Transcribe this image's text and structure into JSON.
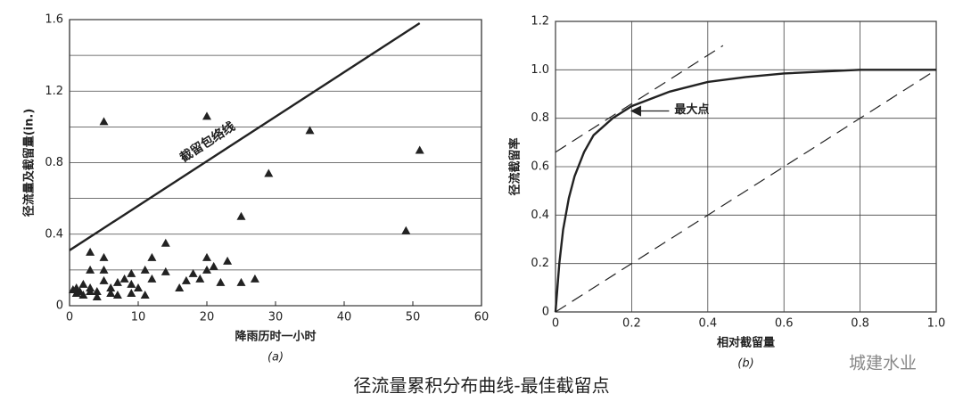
{
  "chart_data": [
    {
      "type": "scatter",
      "subtitle": "(a)",
      "xlabel": "降雨历时一小时",
      "ylabel": "径流量及截留量(in.)",
      "xlim": [
        0,
        60
      ],
      "xticks": [
        0,
        10,
        20,
        30,
        40,
        50,
        60
      ],
      "ylim": [
        0,
        1.6
      ],
      "yticks": [
        0,
        0.4,
        0.8,
        1.2,
        1.6
      ],
      "minor_yticks": [
        0.2,
        0.6,
        1.0,
        1.4
      ],
      "grid": "y",
      "color": "#222",
      "points": {
        "x": [
          5,
          20,
          35,
          51,
          29,
          25,
          49,
          14,
          3,
          5,
          12,
          20,
          23,
          21,
          3,
          5,
          9,
          11,
          14,
          18,
          20,
          1,
          2,
          3,
          4,
          5,
          6,
          7,
          8,
          9,
          10,
          12,
          16,
          19,
          22,
          25,
          27,
          1,
          2,
          3,
          4,
          6,
          7,
          9,
          11,
          0.5,
          1.5,
          17
        ],
        "y": [
          1.03,
          1.06,
          0.98,
          0.87,
          0.74,
          0.5,
          0.42,
          0.35,
          0.3,
          0.27,
          0.27,
          0.27,
          0.25,
          0.22,
          0.2,
          0.2,
          0.18,
          0.2,
          0.19,
          0.18,
          0.2,
          0.1,
          0.12,
          0.1,
          0.08,
          0.14,
          0.1,
          0.13,
          0.15,
          0.12,
          0.1,
          0.15,
          0.1,
          0.15,
          0.13,
          0.13,
          0.15,
          0.07,
          0.06,
          0.08,
          0.05,
          0.07,
          0.06,
          0.07,
          0.06,
          0.09,
          0.08,
          0.14
        ]
      },
      "lines": [
        {
          "label": "截留包络线",
          "x": [
            0,
            51
          ],
          "y": [
            0.31,
            1.58
          ],
          "dash": false
        }
      ]
    },
    {
      "type": "line",
      "subtitle": "(b)",
      "xlabel": "相对截留量",
      "ylabel": "径流截留率",
      "xlim": [
        0,
        1
      ],
      "xticks": [
        0,
        0.2,
        0.4,
        0.6,
        0.8,
        {
          "value": 1,
          "label": "1.0"
        }
      ],
      "ylim": [
        0,
        1.2
      ],
      "yticks": [
        0,
        0.2,
        0.4,
        0.6,
        0.8,
        {
          "value": 1,
          "label": "1.0"
        },
        1.2
      ],
      "grid": "xy",
      "color": "#222",
      "lines": [
        {
          "x": [
            0,
            0.01,
            0.02,
            0.035,
            0.05,
            0.075,
            0.1,
            0.15,
            0.2,
            0.3,
            0.4,
            0.5,
            0.6,
            0.8,
            1.0
          ],
          "y": [
            0,
            0.2,
            0.34,
            0.47,
            0.56,
            0.66,
            0.73,
            0.8,
            0.85,
            0.91,
            0.95,
            0.97,
            0.985,
            1.0,
            1.0
          ],
          "dash": false
        },
        {
          "x": [
            0,
            1
          ],
          "y": [
            0,
            1
          ],
          "dash": true
        },
        {
          "x": [
            0,
            0.44
          ],
          "y": [
            0.66,
            1.1
          ],
          "dash": true
        }
      ],
      "annotations": [
        {
          "text": "最大点",
          "x": 0.2,
          "y": 0.83
        }
      ]
    }
  ],
  "caption": "径流量累积分布曲线-最佳截留点",
  "watermark": "城建水业"
}
